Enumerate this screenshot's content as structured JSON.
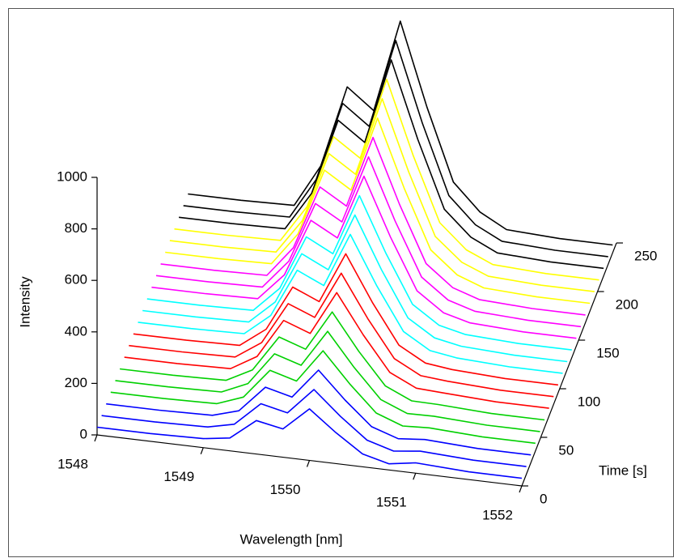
{
  "chart_data": {
    "type": "waterfall",
    "xlabel": "Wavelength  [nm]",
    "ylabel": "Time [s]",
    "zlabel": "Intensity",
    "x": [
      1548,
      1548.5,
      1549,
      1549.25,
      1549.5,
      1549.75,
      1550,
      1550.25,
      1550.5,
      1550.75,
      1551,
      1551.5,
      1552
    ],
    "xlim": [
      1548,
      1552
    ],
    "xticks": [
      1548,
      1549,
      1550,
      1551,
      1552
    ],
    "ylim": [
      0,
      250
    ],
    "yticks": [
      0,
      50,
      100,
      150,
      200,
      250
    ],
    "zlim": [
      0,
      1000
    ],
    "zticks": [
      0,
      200,
      400,
      600,
      800,
      1000
    ],
    "series": [
      {
        "color": "#0000ff",
        "t": 0,
        "values": [
          30,
          30,
          35,
          50,
          130,
          110,
          200,
          120,
          50,
          24,
          40,
          30,
          30
        ]
      },
      {
        "color": "#0000ff",
        "t": 12,
        "values": [
          30,
          30,
          35,
          58,
          150,
          127,
          230,
          138,
          58,
          28,
          40,
          30,
          30
        ]
      },
      {
        "color": "#0000ff",
        "t": 24,
        "values": [
          30,
          30,
          35,
          65,
          169,
          143,
          260,
          156,
          65,
          31,
          40,
          30,
          30
        ]
      },
      {
        "color": "#00d000",
        "t": 36,
        "values": [
          30,
          30,
          35,
          73,
          189,
          160,
          290,
          174,
          73,
          35,
          40,
          30,
          30
        ]
      },
      {
        "color": "#00d000",
        "t": 48,
        "values": [
          30,
          30,
          35,
          80,
          208,
          176,
          320,
          192,
          80,
          38,
          40,
          30,
          30
        ]
      },
      {
        "color": "#00d000",
        "t": 60,
        "values": [
          30,
          30,
          35,
          88,
          228,
          193,
          350,
          210,
          88,
          42,
          40,
          30,
          30
        ]
      },
      {
        "color": "#ff0000",
        "t": 72,
        "values": [
          30,
          30,
          35,
          95,
          247,
          209,
          380,
          228,
          95,
          46,
          40,
          30,
          30
        ]
      },
      {
        "color": "#ff0000",
        "t": 84,
        "values": [
          30,
          30,
          35,
          103,
          267,
          226,
          410,
          246,
          103,
          49,
          40,
          30,
          30
        ]
      },
      {
        "color": "#ff0000",
        "t": 96,
        "values": [
          30,
          30,
          35,
          110,
          286,
          242,
          440,
          264,
          110,
          53,
          40,
          30,
          30
        ]
      },
      {
        "color": "#00ffff",
        "t": 108,
        "values": [
          30,
          30,
          35,
          118,
          306,
          259,
          470,
          282,
          118,
          56,
          40,
          30,
          30
        ]
      },
      {
        "color": "#00ffff",
        "t": 120,
        "values": [
          30,
          30,
          35,
          125,
          325,
          275,
          500,
          300,
          125,
          60,
          40,
          30,
          30
        ]
      },
      {
        "color": "#00ffff",
        "t": 132,
        "values": [
          30,
          30,
          35,
          133,
          345,
          292,
          530,
          318,
          133,
          64,
          40,
          30,
          30
        ]
      },
      {
        "color": "#ff00ff",
        "t": 144,
        "values": [
          30,
          30,
          35,
          140,
          364,
          308,
          560,
          336,
          140,
          67,
          40,
          30,
          30
        ]
      },
      {
        "color": "#ff00ff",
        "t": 156,
        "values": [
          30,
          30,
          35,
          148,
          384,
          325,
          590,
          354,
          148,
          71,
          40,
          30,
          30
        ]
      },
      {
        "color": "#ff00ff",
        "t": 168,
        "values": [
          30,
          30,
          35,
          155,
          403,
          341,
          620,
          372,
          155,
          74,
          40,
          30,
          30
        ]
      },
      {
        "color": "#ffff00",
        "t": 180,
        "values": [
          30,
          30,
          35,
          163,
          423,
          358,
          650,
          390,
          163,
          78,
          40,
          30,
          30
        ]
      },
      {
        "color": "#ffff00",
        "t": 192,
        "values": [
          30,
          30,
          35,
          170,
          442,
          374,
          680,
          408,
          170,
          82,
          40,
          30,
          30
        ]
      },
      {
        "color": "#ffff00",
        "t": 204,
        "values": [
          30,
          30,
          35,
          178,
          462,
          391,
          710,
          426,
          178,
          85,
          40,
          30,
          30
        ]
      },
      {
        "color": "#000000",
        "t": 216,
        "values": [
          30,
          30,
          35,
          185,
          481,
          407,
          740,
          444,
          185,
          89,
          40,
          30,
          30
        ]
      },
      {
        "color": "#000000",
        "t": 228,
        "values": [
          30,
          30,
          35,
          193,
          501,
          424,
          770,
          462,
          193,
          92,
          40,
          30,
          30
        ]
      },
      {
        "color": "#000000",
        "t": 240,
        "values": [
          30,
          30,
          35,
          200,
          520,
          440,
          800,
          480,
          200,
          96,
          40,
          30,
          30
        ]
      }
    ]
  }
}
